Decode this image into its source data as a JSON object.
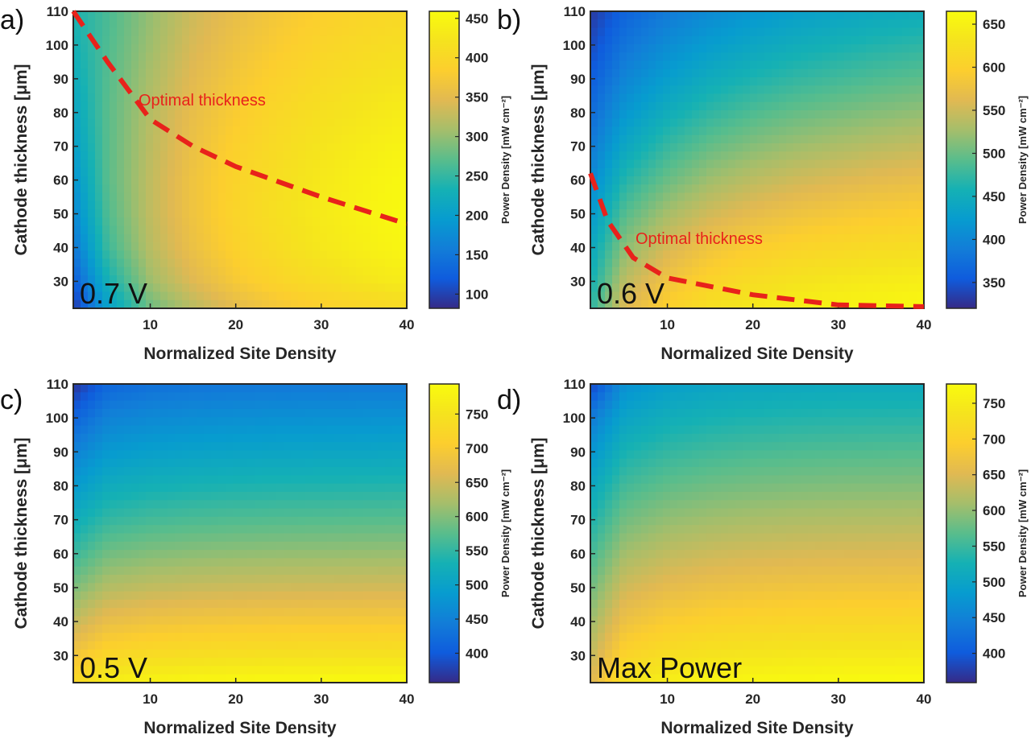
{
  "chart_data": [
    {
      "type": "heatmap",
      "panel_label": "a)",
      "condition_label": "0.7 V",
      "xlabel": "Normalized Site Density",
      "ylabel": "Cathode thickness [μm]",
      "colorbar_label": "Power Density [mW cm⁻²]",
      "xlim": [
        1,
        40
      ],
      "ylim": [
        22,
        110
      ],
      "xticks": [
        10,
        20,
        30,
        40
      ],
      "yticks": [
        30,
        40,
        50,
        60,
        70,
        80,
        90,
        100,
        110
      ],
      "clim": [
        82,
        459
      ],
      "cticks": [
        100,
        150,
        200,
        250,
        300,
        350,
        400,
        450
      ],
      "grid_x": [
        1,
        5,
        10,
        15,
        20,
        25,
        30,
        35,
        40
      ],
      "grid_y": [
        22,
        30,
        40,
        50,
        60,
        70,
        80,
        90,
        100,
        110
      ],
      "z": [
        [
          90,
          200,
          280,
          320,
          350,
          370,
          385,
          395,
          405
        ],
        [
          120,
          230,
          305,
          345,
          375,
          395,
          410,
          425,
          435
        ],
        [
          150,
          255,
          320,
          360,
          390,
          410,
          428,
          440,
          452
        ],
        [
          170,
          265,
          325,
          365,
          395,
          415,
          432,
          445,
          457
        ],
        [
          185,
          270,
          325,
          365,
          393,
          413,
          430,
          443,
          455
        ],
        [
          200,
          270,
          322,
          360,
          388,
          407,
          424,
          436,
          447
        ],
        [
          210,
          270,
          318,
          355,
          380,
          400,
          415,
          426,
          437
        ],
        [
          220,
          268,
          312,
          348,
          372,
          390,
          405,
          416,
          425
        ],
        [
          230,
          265,
          305,
          340,
          363,
          380,
          395,
          405,
          413
        ],
        [
          235,
          262,
          300,
          333,
          355,
          372,
          385,
          395,
          402
        ]
      ],
      "optimal_line": {
        "label": "Optimal thickness",
        "x": [
          1,
          5,
          10,
          15,
          20,
          30,
          40
        ],
        "y": [
          110,
          95,
          78,
          70,
          64,
          55,
          47
        ]
      }
    },
    {
      "type": "heatmap",
      "panel_label": "b)",
      "condition_label": "0.6 V",
      "xlabel": "Normalized Site Density",
      "ylabel": "Cathode thickness [μm]",
      "colorbar_label": "Power Density [mW cm⁻²]",
      "xlim": [
        1,
        40
      ],
      "ylim": [
        22,
        110
      ],
      "xticks": [
        10,
        20,
        30,
        40
      ],
      "yticks": [
        30,
        40,
        50,
        60,
        70,
        80,
        90,
        100,
        110
      ],
      "clim": [
        320,
        665
      ],
      "cticks": [
        350,
        400,
        450,
        500,
        550,
        600,
        650
      ],
      "grid_x": [
        1,
        5,
        10,
        15,
        20,
        25,
        30,
        35,
        40
      ],
      "grid_y": [
        22,
        30,
        40,
        50,
        60,
        70,
        80,
        90,
        100,
        110
      ],
      "z": [
        [
          470,
          560,
          600,
          625,
          638,
          647,
          653,
          658,
          662
        ],
        [
          455,
          540,
          580,
          605,
          620,
          630,
          637,
          642,
          646
        ],
        [
          440,
          515,
          555,
          580,
          595,
          605,
          612,
          618,
          622
        ],
        [
          420,
          490,
          528,
          552,
          567,
          578,
          586,
          592,
          597
        ],
        [
          400,
          465,
          500,
          525,
          540,
          551,
          559,
          566,
          571
        ],
        [
          385,
          440,
          475,
          498,
          513,
          524,
          532,
          539,
          545
        ],
        [
          370,
          418,
          450,
          472,
          487,
          498,
          506,
          513,
          519
        ],
        [
          355,
          398,
          427,
          448,
          462,
          473,
          481,
          488,
          494
        ],
        [
          342,
          380,
          406,
          425,
          439,
          450,
          458,
          465,
          471
        ],
        [
          330,
          362,
          386,
          404,
          417,
          428,
          436,
          443,
          448
        ]
      ],
      "optimal_line": {
        "label": "Optimal thickness",
        "x": [
          1,
          3,
          6,
          10,
          20,
          30,
          40
        ],
        "y": [
          62,
          48,
          37,
          31,
          26,
          23,
          22.5
        ]
      }
    },
    {
      "type": "heatmap",
      "panel_label": "c)",
      "condition_label": "0.5 V",
      "xlabel": "Normalized Site Density",
      "ylabel": "Cathode thickness [μm]",
      "colorbar_label": "Power Density [mW cm⁻²]",
      "xlim": [
        1,
        40
      ],
      "ylim": [
        22,
        110
      ],
      "xticks": [
        10,
        20,
        30,
        40
      ],
      "yticks": [
        30,
        40,
        50,
        60,
        70,
        80,
        90,
        100,
        110
      ],
      "clim": [
        357,
        794
      ],
      "cticks": [
        400,
        450,
        500,
        550,
        600,
        650,
        700,
        750
      ],
      "grid_x": [
        1,
        5,
        10,
        15,
        20,
        25,
        30,
        35,
        40
      ],
      "grid_y": [
        22,
        30,
        40,
        50,
        60,
        70,
        80,
        90,
        100,
        110
      ],
      "z": [
        [
          730,
          770,
          780,
          785,
          788,
          790,
          791,
          792,
          793
        ],
        [
          690,
          725,
          735,
          740,
          743,
          745,
          746,
          747,
          748
        ],
        [
          640,
          675,
          685,
          690,
          693,
          695,
          696,
          697,
          698
        ],
        [
          595,
          630,
          640,
          645,
          648,
          650,
          651,
          652,
          653
        ],
        [
          555,
          590,
          600,
          605,
          608,
          610,
          611,
          612,
          613
        ],
        [
          520,
          552,
          562,
          567,
          570,
          572,
          573,
          574,
          575
        ],
        [
          485,
          518,
          528,
          533,
          536,
          538,
          539,
          540,
          541
        ],
        [
          450,
          485,
          495,
          500,
          503,
          505,
          506,
          507,
          508
        ],
        [
          410,
          452,
          462,
          467,
          470,
          472,
          473,
          474,
          475
        ],
        [
          365,
          415,
          428,
          433,
          436,
          438,
          439,
          440,
          441
        ]
      ]
    },
    {
      "type": "heatmap",
      "panel_label": "d)",
      "condition_label": "Max Power",
      "xlabel": "Normalized Site Density",
      "ylabel": "Cathode thickness [μm]",
      "colorbar_label": "Power Density [mW cm⁻²]",
      "xlim": [
        1,
        40
      ],
      "ylim": [
        22,
        110
      ],
      "xticks": [
        10,
        20,
        30,
        40
      ],
      "yticks": [
        30,
        40,
        50,
        60,
        70,
        80,
        90,
        100,
        110
      ],
      "clim": [
        359,
        777
      ],
      "cticks": [
        400,
        450,
        500,
        550,
        600,
        650,
        700,
        750
      ],
      "grid_x": [
        1,
        5,
        10,
        15,
        20,
        25,
        30,
        35,
        40
      ],
      "grid_y": [
        22,
        30,
        40,
        50,
        60,
        70,
        80,
        90,
        100,
        110
      ],
      "z": [
        [
          650,
          735,
          755,
          765,
          770,
          773,
          775,
          776,
          777
        ],
        [
          630,
          705,
          725,
          735,
          740,
          743,
          745,
          746,
          747
        ],
        [
          605,
          670,
          690,
          700,
          705,
          708,
          710,
          711,
          712
        ],
        [
          580,
          640,
          658,
          667,
          672,
          675,
          677,
          678,
          679
        ],
        [
          555,
          610,
          628,
          637,
          642,
          645,
          647,
          648,
          649
        ],
        [
          530,
          582,
          600,
          608,
          613,
          616,
          618,
          619,
          620
        ],
        [
          505,
          555,
          572,
          580,
          585,
          588,
          590,
          591,
          592
        ],
        [
          475,
          528,
          545,
          553,
          558,
          561,
          563,
          564,
          565
        ],
        [
          440,
          500,
          518,
          526,
          531,
          534,
          536,
          537,
          538
        ],
        [
          380,
          470,
          490,
          499,
          504,
          507,
          509,
          510,
          511
        ]
      ]
    }
  ],
  "colors": {
    "optimal_line": "#e8221b",
    "axis": "#262626"
  }
}
